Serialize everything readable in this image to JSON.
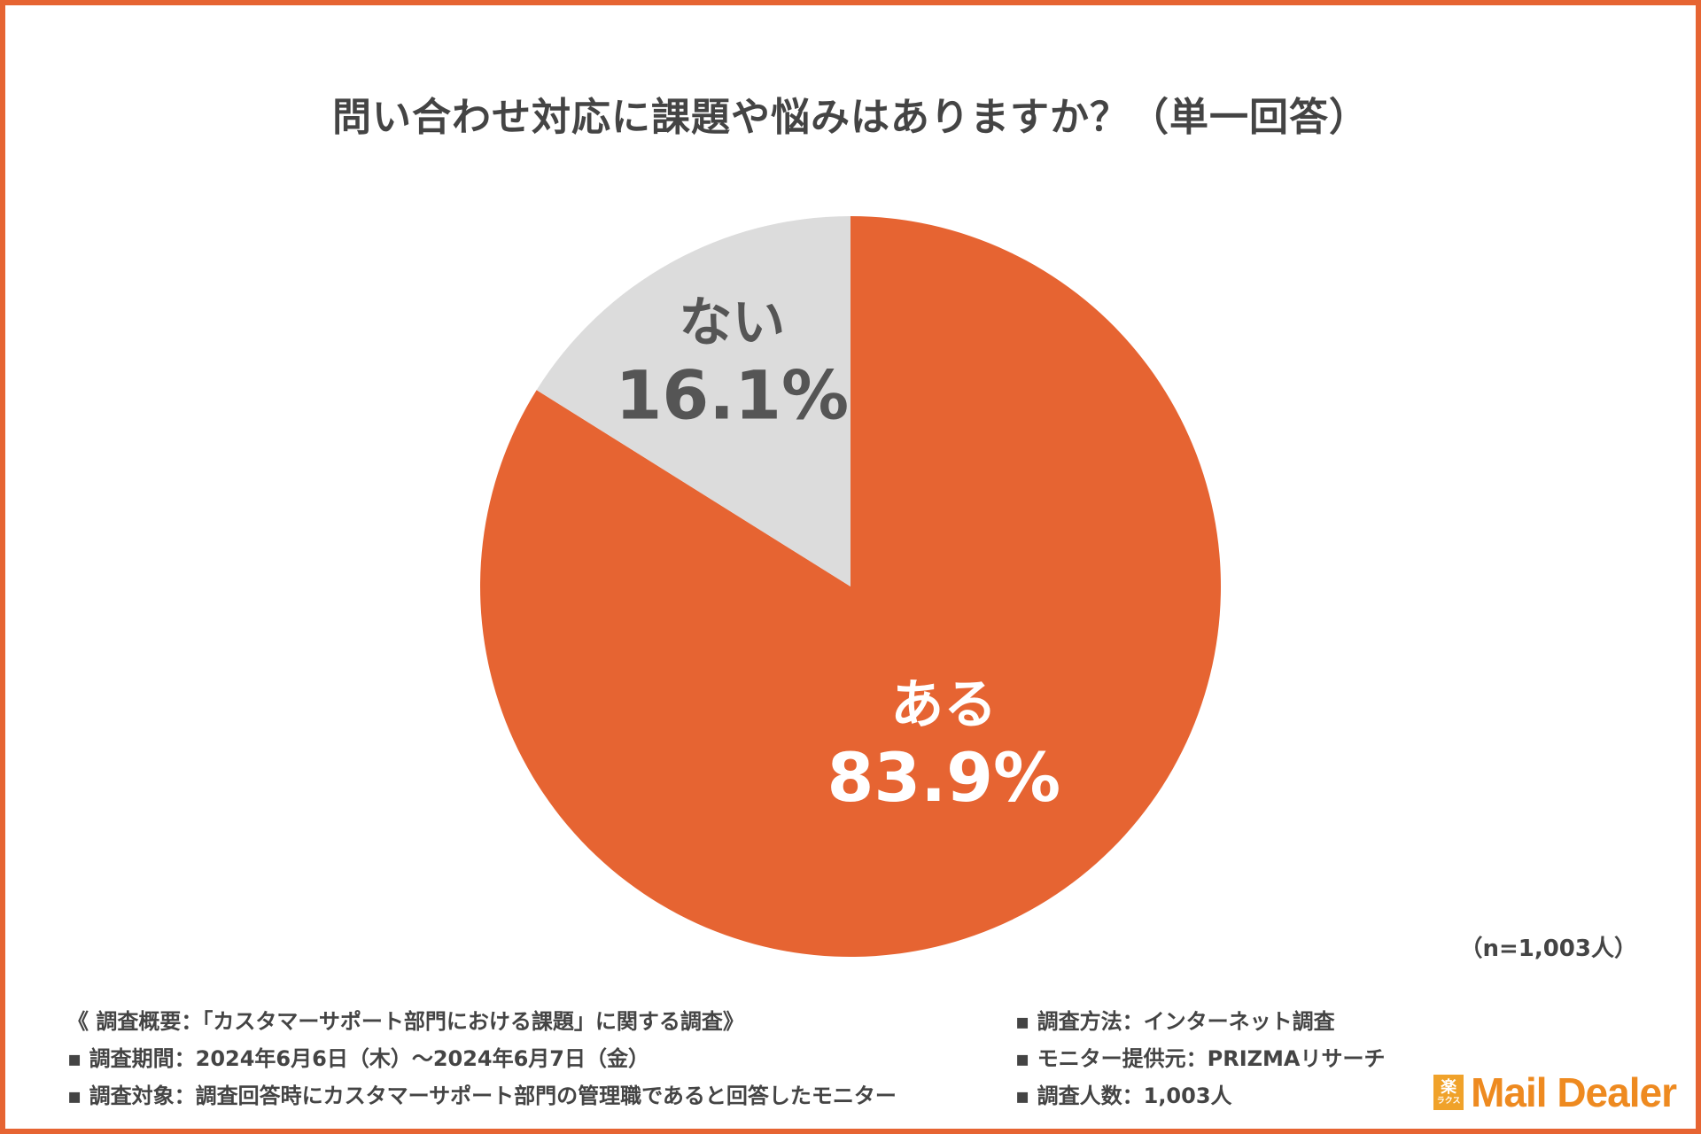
{
  "chart_data": {
    "type": "pie",
    "title": "問い合わせ対応に課題や悩みはありますか？（単一回答）",
    "slices": [
      {
        "label": "ある",
        "value": 83.9,
        "value_text": "83.9%",
        "color": "#E66432",
        "text_color": "#ffffff"
      },
      {
        "label": "ない",
        "value": 16.1,
        "value_text": "16.1%",
        "color": "#DCDCDC",
        "text_color": "#555555"
      }
    ],
    "start": "12 o'clock",
    "direction": "clockwise",
    "sample_size": "（n=1,003人）"
  },
  "footer": {
    "left": [
      "《 調査概要：「カスタマーサポート部門における課題」に関する調査》",
      "▪ 調査期間：2024年6月6日（木）～2024年6月7日（金）",
      "▪ 調査対象：調査回答時にカスタマーサポート部門の管理職であると回答したモニター"
    ],
    "right": [
      "▪ 調査方法：インターネット調査",
      "▪ モニター提供元：PRIZMAリサーチ",
      "▪ 調査人数：1,003人"
    ]
  },
  "logo": {
    "mark_main": "楽",
    "mark_sub": "ラクス",
    "name": "Mail Dealer",
    "color": "#EE8A20"
  },
  "frame_color": "#E66432"
}
